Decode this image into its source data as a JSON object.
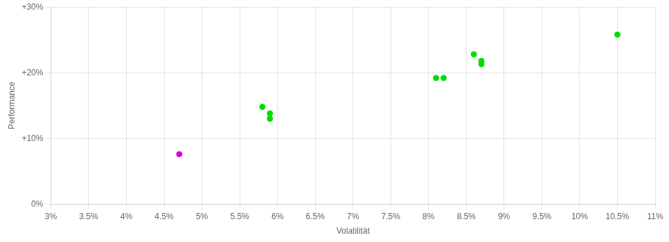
{
  "chart_data": {
    "type": "scatter",
    "xlabel": "Volatilität",
    "ylabel": "Performance",
    "xlim": [
      0.03,
      0.11
    ],
    "ylim": [
      0.0,
      0.3
    ],
    "xticks": [
      {
        "value": 0.03,
        "label": "3%"
      },
      {
        "value": 0.035,
        "label": "3.5%"
      },
      {
        "value": 0.04,
        "label": "4%"
      },
      {
        "value": 0.045,
        "label": "4.5%"
      },
      {
        "value": 0.05,
        "label": "5%"
      },
      {
        "value": 0.055,
        "label": "5.5%"
      },
      {
        "value": 0.06,
        "label": "6%"
      },
      {
        "value": 0.065,
        "label": "6.5%"
      },
      {
        "value": 0.07,
        "label": "7%"
      },
      {
        "value": 0.075,
        "label": "7.5%"
      },
      {
        "value": 0.08,
        "label": "8%"
      },
      {
        "value": 0.085,
        "label": "8.5%"
      },
      {
        "value": 0.09,
        "label": "9%"
      },
      {
        "value": 0.095,
        "label": "9.5%"
      },
      {
        "value": 0.1,
        "label": "10%"
      },
      {
        "value": 0.105,
        "label": "10.5%"
      },
      {
        "value": 0.11,
        "label": "11%"
      }
    ],
    "yticks": [
      {
        "value": 0.0,
        "label": "0%"
      },
      {
        "value": 0.1,
        "label": "+10%"
      },
      {
        "value": 0.2,
        "label": "+20%"
      },
      {
        "value": 0.3,
        "label": "+30%"
      }
    ],
    "grid": true,
    "series": [
      {
        "color": "#00dd00",
        "x": [
          0.058,
          0.059,
          0.059,
          0.081,
          0.082,
          0.086,
          0.087,
          0.087,
          0.105
        ],
        "values": [
          0.148,
          0.138,
          0.13,
          0.192,
          0.192,
          0.228,
          0.218,
          0.213,
          0.258
        ]
      },
      {
        "color": "#dd00dd",
        "x": [
          0.047
        ],
        "values": [
          0.076
        ]
      }
    ]
  }
}
